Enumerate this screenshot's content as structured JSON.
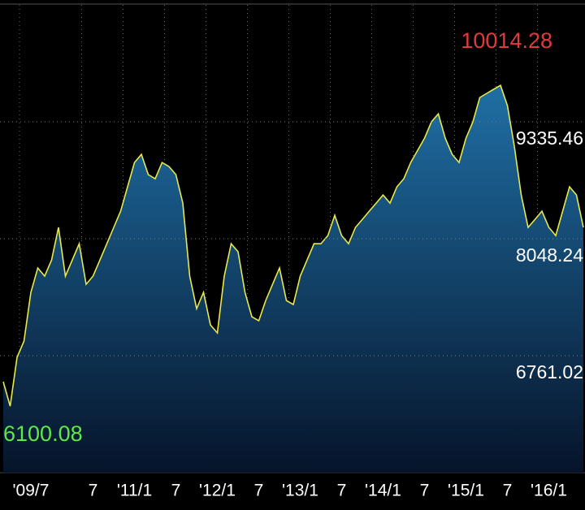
{
  "chart_data": {
    "type": "area",
    "categories": [
      null,
      null,
      null,
      null,
      "'09/7",
      null,
      null,
      null,
      null,
      null,
      null,
      null,
      null,
      "7",
      null,
      null,
      null,
      null,
      null,
      "'11/1",
      null,
      null,
      null,
      null,
      null,
      "7",
      null,
      null,
      null,
      null,
      null,
      "'12/1",
      null,
      null,
      null,
      null,
      null,
      "7",
      null,
      null,
      null,
      null,
      null,
      "'13/1",
      null,
      null,
      null,
      null,
      null,
      "7",
      null,
      null,
      null,
      null,
      null,
      "'14/1",
      null,
      null,
      null,
      null,
      null,
      "7",
      null,
      null,
      null,
      null,
      null,
      "'15/1",
      null,
      null,
      null,
      null,
      null,
      "7",
      null,
      null,
      null,
      null,
      null,
      "'16/1",
      null,
      null,
      null,
      null,
      null
    ],
    "series": [
      {
        "color": "#e8e84a",
        "values": [
          6475,
          6206,
          6743,
          6921,
          7458,
          7726,
          7637,
          7815,
          8173,
          7637,
          7815,
          7994,
          7547,
          7637,
          7815,
          7994,
          8173,
          8352,
          8620,
          8888,
          8977,
          8754,
          8709,
          8888,
          8843,
          8754,
          8441,
          7637,
          7279,
          7458,
          7100,
          7011,
          7637,
          7994,
          7905,
          7458,
          7189,
          7145,
          7368,
          7547,
          7726,
          7368,
          7324,
          7637,
          7815,
          7994,
          7994,
          8083,
          8307,
          8083,
          7994,
          8173,
          8262,
          8352,
          8441,
          8530,
          8441,
          8620,
          8709,
          8888,
          9022,
          9156,
          9335,
          9424,
          9156,
          8977,
          8888,
          9156,
          9335,
          9603,
          9648,
          9693,
          9737,
          9514,
          9067,
          8530,
          8173,
          8262,
          8352,
          8173,
          8083,
          8352,
          8620,
          8530,
          8173
        ]
      }
    ],
    "ylim": [
      5473.8,
      10622.68
    ],
    "yticks": [
      6761.02,
      8048.24,
      9335.46
    ],
    "high": 10014.28,
    "low": 6100.08,
    "high_color": "#e03a3a",
    "low_color": "#5ee84a",
    "grid": true
  }
}
